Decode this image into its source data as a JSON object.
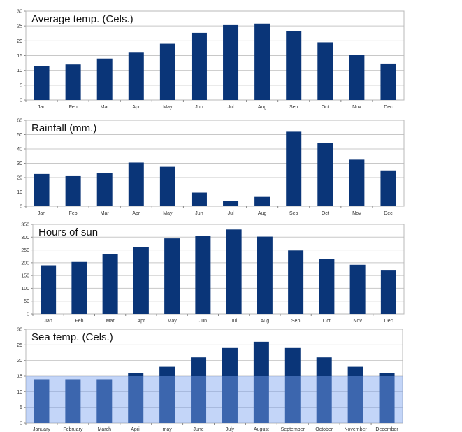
{
  "chart_data": [
    {
      "type": "bar",
      "title": "Average temp. (Cels.)",
      "categories": [
        "Jan",
        "Feb",
        "Mar",
        "Apr",
        "May",
        "Jun",
        "Jul",
        "Aug",
        "Sep",
        "Oct",
        "Nov",
        "Dec"
      ],
      "values": [
        11.5,
        12,
        14,
        16,
        19,
        22.7,
        25.3,
        25.8,
        23.3,
        19.5,
        15.3,
        12.3
      ],
      "ylim": [
        0,
        30
      ],
      "yticks": [
        0,
        5,
        10,
        15,
        20,
        25,
        30
      ],
      "grid": true,
      "colors": {
        "bar": "#0a3578",
        "grid": "#c8c8c8"
      }
    },
    {
      "type": "bar",
      "title": "Rainfall (mm.)",
      "categories": [
        "Jan",
        "Feb",
        "Mar",
        "Apr",
        "May",
        "Jun",
        "Jul",
        "Aug",
        "Sep",
        "Oct",
        "Nov",
        "Dec"
      ],
      "values": [
        22.5,
        21,
        23,
        30.5,
        27.5,
        9.5,
        3.5,
        6.5,
        52,
        44,
        32.5,
        25
      ],
      "ylim": [
        0,
        60
      ],
      "yticks": [
        0,
        10,
        20,
        30,
        40,
        50,
        60
      ],
      "grid": true,
      "colors": {
        "bar": "#0a3578",
        "grid": "#c8c8c8"
      }
    },
    {
      "type": "bar",
      "title": "Hours of sun",
      "categories": [
        "Jan",
        "Feb",
        "Mar",
        "Apr",
        "May",
        "Jun",
        "Jul",
        "Aug",
        "Sep",
        "Oct",
        "Nov",
        "Dec"
      ],
      "values": [
        190,
        203,
        235,
        262,
        295,
        305,
        330,
        302,
        248,
        215,
        192,
        172
      ],
      "ylim": [
        0,
        350
      ],
      "yticks": [
        0,
        50,
        100,
        150,
        200,
        250,
        300,
        350
      ],
      "grid": true,
      "colors": {
        "bar": "#0a3578",
        "grid": "#c8c8c8"
      }
    },
    {
      "type": "bar",
      "title": "Sea temp. (Cels.)",
      "categories": [
        "January",
        "February",
        "March",
        "April",
        "may",
        "June",
        "July",
        "August",
        "September",
        "October",
        "November",
        "December"
      ],
      "values": [
        14,
        14,
        14,
        16,
        18,
        21,
        24,
        26,
        24,
        21,
        18,
        16
      ],
      "ylim": [
        0,
        30
      ],
      "yticks": [
        0,
        5,
        10,
        15,
        20,
        25,
        30
      ],
      "grid": true,
      "highlight_band": [
        0,
        15
      ],
      "colors": {
        "bar": "#0a3578",
        "grid": "#c8c8c8",
        "band": "#7aa2f0"
      }
    }
  ]
}
